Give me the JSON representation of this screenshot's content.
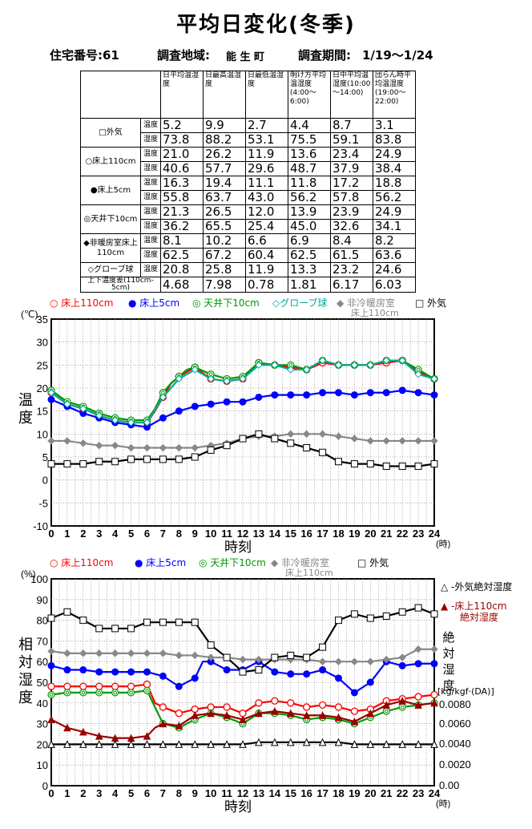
{
  "page": {
    "title": "平均日変化(冬季)",
    "house_label": "住宅番号:61",
    "area_label": "調査地域:",
    "area_value": "能 生 町",
    "period_label": "調査期間:",
    "period_value": "1/19～1/24"
  },
  "table": {
    "headers": [
      "日平均温湿度",
      "日最高温湿度",
      "日最低温湿度",
      "明け方平均温湿度(4:00～6:00)",
      "日中平均温湿度(10:00～14:00)",
      "団らん時平均温湿度(19:00～22:00)"
    ],
    "kind_labels": {
      "temp": "温度",
      "hum": "湿度"
    },
    "rows": [
      {
        "location": "□外気",
        "temp": [
          "5.2",
          "9.9",
          "2.7",
          "4.4",
          "8.7",
          "3.1"
        ],
        "hum": [
          "73.8",
          "88.2",
          "53.1",
          "75.5",
          "59.1",
          "83.8"
        ]
      },
      {
        "location": "○床上110cm",
        "temp": [
          "21.0",
          "26.2",
          "11.9",
          "13.6",
          "23.4",
          "24.9"
        ],
        "hum": [
          "40.6",
          "57.7",
          "29.6",
          "48.7",
          "37.9",
          "38.4"
        ]
      },
      {
        "location": "●床上5cm",
        "temp": [
          "16.3",
          "19.4",
          "11.1",
          "11.8",
          "17.2",
          "18.8"
        ],
        "hum": [
          "55.8",
          "63.7",
          "43.0",
          "56.2",
          "57.8",
          "56.2"
        ]
      },
      {
        "location": "◎天井下10cm",
        "temp": [
          "21.3",
          "26.5",
          "12.0",
          "13.9",
          "23.9",
          "24.9"
        ],
        "hum": [
          "36.2",
          "65.5",
          "25.4",
          "45.0",
          "32.6",
          "34.1"
        ]
      },
      {
        "location": "◆非暖房室床上110cm",
        "temp": [
          "8.1",
          "10.2",
          "6.6",
          "6.9",
          "8.4",
          "8.2"
        ],
        "hum": [
          "62.5",
          "67.2",
          "60.4",
          "62.5",
          "61.5",
          "63.6"
        ]
      },
      {
        "location": "◇グローブ球",
        "temp": [
          "20.8",
          "25.8",
          "11.9",
          "13.3",
          "23.2",
          "24.6"
        ],
        "hum": null
      }
    ],
    "diff_row": {
      "location": "上下温度差(110cm-5cm)",
      "values": [
        "4.68",
        "7.98",
        "0.78",
        "1.81",
        "6.17",
        "6.03"
      ]
    }
  },
  "chart_data": [
    {
      "type": "line",
      "xlabel": "時刻",
      "x_unit": "(時)",
      "ylabel": "温度",
      "y_unit": "(℃)",
      "ylim": [
        -10,
        35
      ],
      "xlim": [
        0,
        24
      ],
      "grid": true,
      "legend": [
        {
          "label": "○ 床上110cm",
          "color": "#ff0000"
        },
        {
          "label": "● 床上5cm",
          "color": "#0000ff"
        },
        {
          "label": "◎ 天井下10cm",
          "color": "#009900"
        },
        {
          "label": "◇グローブ球",
          "color": "#00aa99"
        },
        {
          "label": "◆ 非冷暖房室",
          "label2": "床上110cm",
          "color": "#888888"
        },
        {
          "label": "□ 外気",
          "color": "#000000"
        }
      ],
      "series": [
        {
          "name": "床上110cm",
          "color": "#ff0000",
          "marker": "circle-open",
          "x": [
            0,
            1,
            2,
            3,
            4,
            5,
            6,
            6.5,
            7,
            7.5,
            8,
            8.5,
            9,
            10,
            11,
            12,
            13,
            14,
            15,
            16,
            17,
            18,
            19,
            20,
            21,
            22,
            23,
            24
          ],
          "y": [
            19,
            16.5,
            15.5,
            14,
            13,
            12.5,
            12.5,
            15,
            18,
            21,
            22.5,
            23.5,
            24.5,
            22,
            21.5,
            22,
            25.5,
            25,
            24.5,
            24,
            25.5,
            25,
            25,
            25,
            25.5,
            26,
            23.5,
            22
          ]
        },
        {
          "name": "床上5cm",
          "color": "#0000ff",
          "marker": "circle-filled",
          "x": [
            0,
            1,
            2,
            3,
            4,
            5,
            6,
            7,
            8,
            9,
            10,
            11,
            12,
            13,
            14,
            15,
            16,
            17,
            18,
            19,
            20,
            21,
            22,
            23,
            24
          ],
          "y": [
            17.5,
            16,
            14.5,
            13.5,
            12.5,
            12,
            11.5,
            13.5,
            15,
            16,
            16.5,
            17,
            17,
            18,
            18.5,
            18.5,
            18.5,
            19,
            19,
            18.5,
            19,
            19,
            19.5,
            19,
            18.5
          ]
        },
        {
          "name": "天井下10cm",
          "color": "#009900",
          "marker": "circle-double",
          "x": [
            0,
            1,
            2,
            3,
            4,
            5,
            6,
            6.5,
            7,
            7.5,
            8,
            8.5,
            9,
            10,
            11,
            12,
            13,
            14,
            15,
            16,
            17,
            18,
            19,
            20,
            21,
            22,
            23,
            24
          ],
          "y": [
            19.5,
            17,
            16,
            14.5,
            13.5,
            13,
            13,
            15.5,
            19,
            21,
            22.5,
            24,
            24.5,
            23,
            22,
            22.5,
            25.5,
            25,
            25,
            24,
            26,
            25,
            25,
            25,
            26,
            26,
            24,
            22
          ]
        },
        {
          "name": "グローブ球",
          "color": "#00aa99",
          "marker": "diamond-open",
          "x": [
            0,
            1,
            2,
            3,
            4,
            5,
            6,
            7,
            8,
            9,
            10,
            11,
            12,
            13,
            14,
            15,
            16,
            17,
            18,
            19,
            20,
            21,
            22,
            23,
            24
          ],
          "y": [
            19,
            16.5,
            15.5,
            14,
            13,
            12.5,
            12.5,
            18,
            22,
            24,
            22,
            21.5,
            22,
            25,
            25,
            24,
            24,
            26,
            25,
            25,
            25,
            26,
            26,
            23,
            22
          ]
        },
        {
          "name": "非冷暖房室 床上110cm",
          "color": "#888888",
          "marker": "diamond-filled",
          "x": [
            0,
            1,
            2,
            3,
            4,
            5,
            6,
            7,
            8,
            9,
            10,
            11,
            12,
            13,
            14,
            15,
            16,
            17,
            18,
            19,
            20,
            21,
            22,
            23,
            24
          ],
          "y": [
            8.5,
            8.5,
            8,
            7.5,
            7.5,
            7,
            7,
            7,
            7,
            7,
            7.5,
            8,
            9,
            9.5,
            9.5,
            10,
            10,
            10,
            9.5,
            9,
            8.5,
            8.5,
            8.5,
            8.5,
            8.5
          ]
        },
        {
          "name": "外気",
          "color": "#000000",
          "marker": "square-open",
          "x": [
            0,
            1,
            2,
            3,
            4,
            5,
            6,
            7,
            8,
            9,
            10,
            11,
            12,
            13,
            14,
            15,
            16,
            17,
            18,
            19,
            20,
            21,
            22,
            23,
            24
          ],
          "y": [
            3.5,
            3.5,
            3.5,
            4,
            4,
            4.5,
            4.5,
            4.5,
            4.5,
            5,
            6.5,
            7.5,
            9,
            10,
            9,
            8,
            7,
            6,
            4,
            3.5,
            3.5,
            3,
            3,
            3,
            3.5
          ]
        }
      ]
    },
    {
      "type": "line",
      "xlabel": "時刻",
      "x_unit": "(時)",
      "ylabel": "相対湿度",
      "y_unit": "(%)",
      "ylim": [
        0,
        100
      ],
      "xlim": [
        0,
        24
      ],
      "y2label": "絶対湿度",
      "y2_unit": "[kg/kgf·(DA)]",
      "y2_ticks": [
        "0.0080",
        "0.0060",
        "0.0040",
        "0.0020",
        "0.00"
      ],
      "grid": true,
      "legend": [
        {
          "label": "○ 床上110cm",
          "color": "#ff0000"
        },
        {
          "label": "● 床上5cm",
          "color": "#0000ff"
        },
        {
          "label": "◎ 天井下10cm",
          "color": "#009900"
        },
        {
          "label": "◆ 非冷暖房室",
          "label2": "床上110cm",
          "color": "#888888"
        },
        {
          "label": "□ 外気",
          "color": "#000000"
        }
      ],
      "side_legend": [
        {
          "label": "△ -外気絶対湿度",
          "color": "#000000"
        },
        {
          "label": "▲ -床上110cm",
          "label2": "絶対湿度",
          "color": "#990000"
        }
      ],
      "series": [
        {
          "name": "床上110cm",
          "color": "#ff0000",
          "marker": "circle-open",
          "x": [
            0,
            1,
            2,
            3,
            4,
            5,
            6,
            6.5,
            7,
            8,
            9,
            10,
            11,
            12,
            13,
            14,
            15,
            16,
            17,
            18,
            19,
            20,
            21,
            22,
            23,
            24
          ],
          "y": [
            48,
            48,
            48,
            48,
            48,
            48,
            49,
            40,
            38,
            35,
            37,
            38,
            38,
            35,
            40,
            41,
            40,
            38,
            39,
            38,
            36,
            37,
            41,
            42,
            43,
            44
          ]
        },
        {
          "name": "床上5cm",
          "color": "#0000ff",
          "marker": "circle-filled",
          "x": [
            0,
            1,
            2,
            3,
            4,
            5,
            6,
            7,
            8,
            9,
            9.5,
            10,
            11,
            12,
            13,
            14,
            15,
            16,
            17,
            18,
            19,
            20,
            21,
            22,
            23,
            24
          ],
          "y": [
            58,
            56,
            56,
            55,
            55,
            55,
            55,
            53,
            48,
            52,
            60,
            60,
            56,
            56,
            60,
            55,
            54,
            54,
            56,
            52,
            45,
            50,
            60,
            58,
            59,
            59
          ]
        },
        {
          "name": "天井下10cm",
          "color": "#009900",
          "marker": "circle-double",
          "x": [
            0,
            1,
            2,
            3,
            4,
            5,
            6,
            6.5,
            7,
            8,
            9,
            10,
            11,
            12,
            13,
            14,
            15,
            16,
            17,
            18,
            19,
            20,
            21,
            22,
            23,
            24
          ],
          "y": [
            44,
            45,
            45,
            45,
            45,
            45,
            46,
            38,
            30,
            28,
            32,
            35,
            33,
            30,
            35,
            35,
            34,
            32,
            33,
            32,
            30,
            33,
            36,
            38,
            39,
            40
          ]
        },
        {
          "name": "非冷暖房室 床上110cm",
          "color": "#888888",
          "marker": "diamond-filled",
          "x": [
            0,
            1,
            2,
            3,
            4,
            5,
            6,
            7,
            8,
            9,
            10,
            11,
            12,
            13,
            14,
            15,
            16,
            17,
            18,
            19,
            20,
            21,
            22,
            23,
            24
          ],
          "y": [
            65,
            64,
            64,
            64,
            64,
            64,
            64,
            64,
            63,
            63,
            62,
            62,
            61,
            61,
            61,
            61,
            61,
            60,
            60,
            60,
            60,
            61,
            62,
            66,
            66
          ]
        },
        {
          "name": "外気",
          "color": "#000000",
          "marker": "square-open",
          "x": [
            0,
            1,
            2,
            3,
            4,
            5,
            6,
            7,
            8,
            9,
            10,
            11,
            12,
            13,
            14,
            15,
            16,
            17,
            18,
            19,
            20,
            21,
            22,
            23,
            24
          ],
          "y": [
            81,
            84,
            80,
            76,
            76,
            76,
            79,
            79,
            79,
            79,
            68,
            62,
            55,
            56,
            62,
            63,
            62,
            67,
            80,
            83,
            81,
            82,
            84,
            86,
            83
          ]
        },
        {
          "name": "床上110cm 絶対湿度",
          "color": "#990000",
          "marker": "triangle-filled",
          "x": [
            0,
            1,
            2,
            3,
            4,
            5,
            6,
            6.5,
            7,
            8,
            9,
            10,
            11,
            12,
            13,
            14,
            15,
            16,
            17,
            18,
            19,
            20,
            21,
            22,
            23,
            24
          ],
          "y": [
            32,
            28,
            26,
            24,
            23,
            23,
            24,
            28,
            30,
            29,
            34,
            35,
            34,
            32,
            35,
            36,
            35,
            34,
            34,
            33,
            31,
            35,
            39,
            41,
            39,
            40
          ]
        },
        {
          "name": "外気絶対湿度",
          "color": "#000000",
          "marker": "triangle-open",
          "x": [
            0,
            1,
            2,
            3,
            4,
            5,
            6,
            7,
            8,
            9,
            10,
            11,
            12,
            13,
            14,
            15,
            16,
            17,
            18,
            19,
            20,
            21,
            22,
            23,
            24
          ],
          "y": [
            20,
            20,
            20,
            20,
            20,
            20,
            20,
            20,
            20,
            20,
            20,
            20,
            20,
            21,
            21,
            21,
            21,
            21,
            21,
            20,
            20,
            20,
            20,
            20,
            20
          ]
        }
      ]
    }
  ]
}
